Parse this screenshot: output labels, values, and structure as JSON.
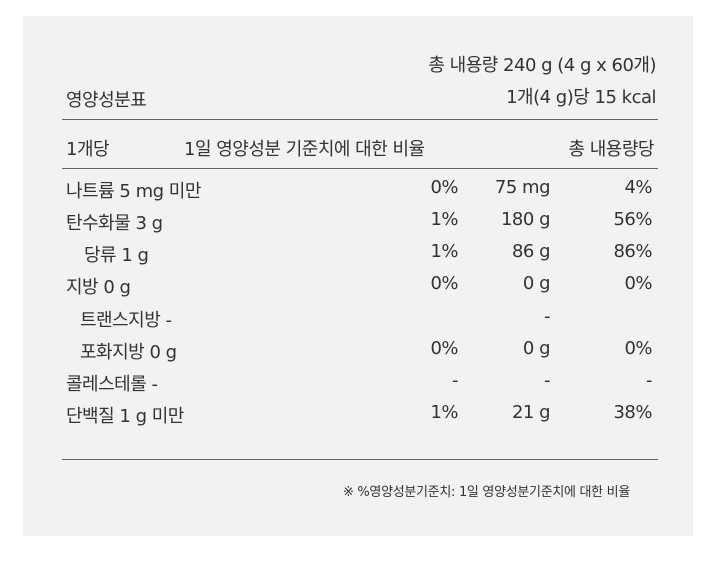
{
  "label": {
    "title": "영양성분표",
    "total_content": "총 내용량 240 g (4 g x 60개)",
    "per_unit_calories": "1개(4 g)당 15 kcal",
    "header": {
      "per_unit": "1개당",
      "daily_value": "1일 영양성분 기준치에 대한 비율",
      "per_total": "총 내용량당"
    },
    "rows": [
      {
        "name": "나트륨 5 mg 미만",
        "dv": "0%",
        "amount": "75 mg",
        "pct": "4%"
      },
      {
        "name": "탄수화물 3 g",
        "dv": "1%",
        "amount": "180 g",
        "pct": "56%"
      },
      {
        "name": "당류 1 g",
        "dv": "1%",
        "amount": "86 g",
        "pct": "86%"
      },
      {
        "name": "지방 0 g",
        "dv": "0%",
        "amount": "0 g",
        "pct": "0%"
      },
      {
        "name": "트랜스지방 -",
        "dv": "",
        "amount": "-",
        "pct": ""
      },
      {
        "name": "포화지방 0 g",
        "dv": "0%",
        "amount": "0 g",
        "pct": "0%"
      },
      {
        "name": "콜레스테롤 -",
        "dv": "-",
        "amount": "-",
        "pct": "-"
      },
      {
        "name": "단백질 1 g 미만",
        "dv": "1%",
        "amount": "21 g",
        "pct": "38%"
      }
    ],
    "footnote": "※ %영양성분기준치: 1일 영양성분기준치에 대한 비율"
  }
}
